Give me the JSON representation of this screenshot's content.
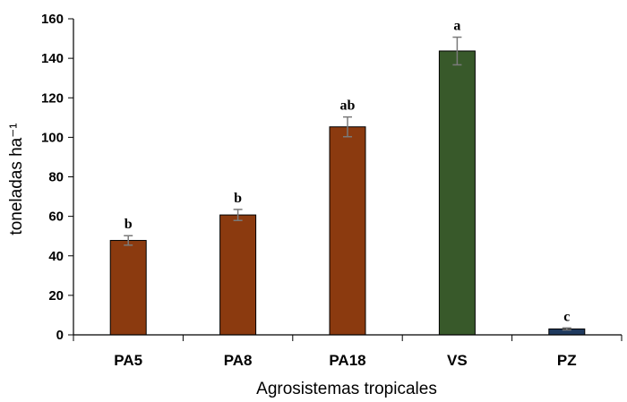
{
  "chart_data": {
    "type": "bar",
    "categories": [
      "PA5",
      "PA8",
      "PA18",
      "VS",
      "PZ"
    ],
    "values": [
      47.8,
      60.7,
      105.3,
      143.7,
      3.0
    ],
    "errors": [
      2.4,
      2.8,
      5.0,
      7.0,
      0.5
    ],
    "significance": [
      "b",
      "b",
      "ab",
      "a",
      "c"
    ],
    "colors": [
      "#8B3A0F",
      "#8B3A0F",
      "#8B3A0F",
      "#38592A",
      "#1F3A5F"
    ],
    "xlabel": "Agrosistemas tropicales",
    "ylabel": "toneladas ha⁻¹",
    "ylim": [
      0,
      160
    ],
    "yticks": [
      "0",
      "20",
      "40",
      "60",
      "80",
      "100",
      "120",
      "140",
      "160"
    ],
    "grid": false,
    "legend": "none"
  }
}
